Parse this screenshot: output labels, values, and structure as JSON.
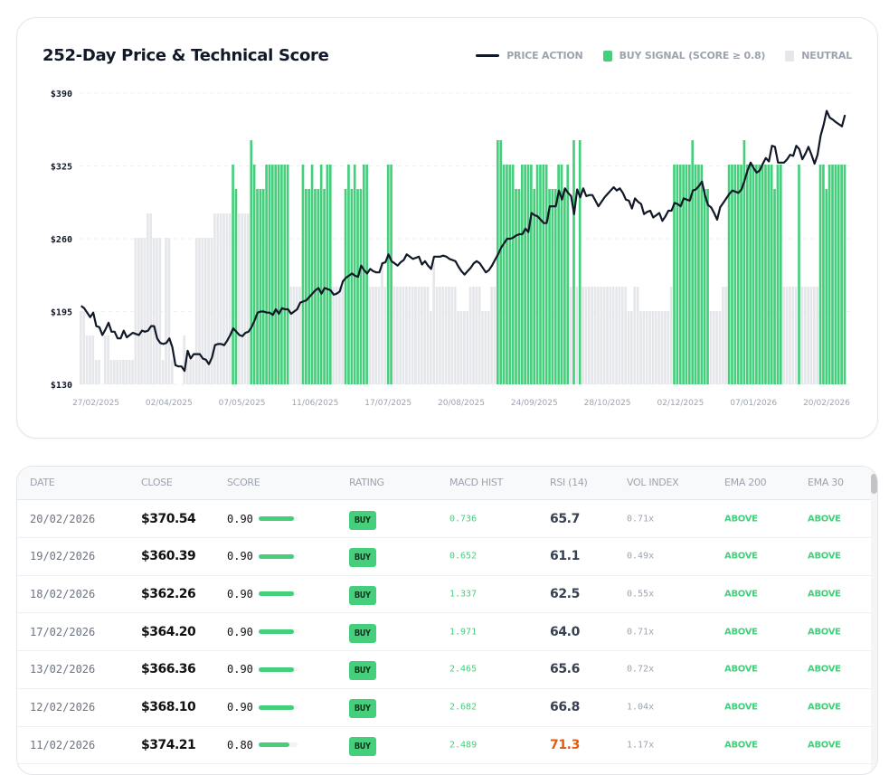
{
  "chart_data": {
    "type": "bar+line",
    "title": "252-Day Price & Technical Score",
    "legend": [
      {
        "label": "PRICE ACTION",
        "color": "#111827",
        "kind": "line"
      },
      {
        "label": "BUY SIGNAL (SCORE ≥ 0.8)",
        "color": "#45cf7c",
        "kind": "box"
      },
      {
        "label": "NEUTRAL",
        "color": "#e5e7eb",
        "kind": "box"
      }
    ],
    "legend_position": "top-right",
    "grid": true,
    "buy_threshold": 0.8,
    "ylim": [
      130,
      390
    ],
    "y_ticks": [
      "$390",
      "$325",
      "$260",
      "$195",
      "$130"
    ],
    "y_tick_values": [
      390,
      325,
      260,
      195,
      130
    ],
    "x_ticks": [
      "27/02/2025",
      "02/04/2025",
      "07/05/2025",
      "11/06/2025",
      "17/07/2025",
      "20/08/2025",
      "24/09/2025",
      "28/10/2025",
      "02/12/2025",
      "07/01/2026",
      "20/02/2026"
    ],
    "score_range": [
      0,
      1
    ],
    "series": [
      {
        "name": "PRICE ACTION",
        "kind": "line",
        "values": [
          200,
          198,
          194,
          190,
          194,
          182,
          181,
          174,
          179,
          185,
          177,
          177,
          171,
          171,
          178,
          172,
          174,
          176,
          175,
          174,
          178,
          177,
          178,
          182,
          182,
          171,
          167,
          166,
          167,
          171,
          163,
          147,
          146,
          146,
          142,
          160,
          153,
          157,
          157,
          157,
          153,
          152,
          148,
          154,
          165,
          166,
          166,
          165,
          169,
          174,
          180,
          177,
          174,
          173,
          176,
          177,
          181,
          187,
          194,
          195,
          195,
          194,
          194,
          192,
          197,
          193,
          198,
          197,
          197,
          193,
          195,
          197,
          203,
          204,
          205,
          208,
          211,
          214,
          216,
          211,
          216,
          215,
          214,
          210,
          211,
          213,
          222,
          225,
          227,
          229,
          227,
          226,
          236,
          232,
          229,
          233,
          231,
          230,
          230,
          238,
          239,
          246,
          240,
          238,
          236,
          239,
          241,
          246,
          244,
          242,
          243,
          244,
          237,
          240,
          236,
          233,
          244,
          244,
          244,
          245,
          244,
          242,
          241,
          240,
          235,
          231,
          228,
          231,
          234,
          238,
          240,
          238,
          234,
          230,
          232,
          236,
          241,
          246,
          252,
          256,
          260,
          260,
          261,
          263,
          264,
          264,
          269,
          266,
          283,
          281,
          280,
          277,
          274,
          274,
          289,
          289,
          289,
          303,
          295,
          305,
          301,
          298,
          282,
          304,
          297,
          305,
          298,
          299,
          299,
          294,
          289,
          293,
          297,
          300,
          303,
          306,
          303,
          305,
          301,
          295,
          294,
          287,
          296,
          293,
          291,
          282,
          284,
          285,
          279,
          281,
          283,
          276,
          280,
          285,
          285,
          292,
          291,
          289,
          296,
          295,
          294,
          303,
          304,
          307,
          311,
          299,
          290,
          288,
          283,
          277,
          288,
          292,
          296,
          300,
          303,
          302,
          301,
          304,
          312,
          321,
          328,
          323,
          319,
          321,
          327,
          332,
          329,
          343,
          342,
          328,
          328,
          328,
          331,
          335,
          334,
          343,
          340,
          331,
          336,
          342,
          335,
          327,
          335,
          352,
          362,
          374.21,
          368.1,
          366.36,
          364.2,
          362.26,
          360.39,
          370.54
        ]
      },
      {
        "name": "SCORE",
        "kind": "bar",
        "values": [
          0.3,
          0.3,
          0.2,
          0.2,
          0.2,
          0.1,
          0.1,
          0,
          0.2,
          0.2,
          0.1,
          0.1,
          0.1,
          0.1,
          0.1,
          0.1,
          0.1,
          0.1,
          0.6,
          0.6,
          0.6,
          0.6,
          0.7,
          0.7,
          0.6,
          0.6,
          0.6,
          0.1,
          0.6,
          0.6,
          0.1,
          0,
          0,
          0,
          0.2,
          0.1,
          0.1,
          0.1,
          0.6,
          0.6,
          0.6,
          0.6,
          0.6,
          0.6,
          0.7,
          0.7,
          0.7,
          0.7,
          0.7,
          0.7,
          0.9,
          0.8,
          0.7,
          0.7,
          0.7,
          0.7,
          1.0,
          0.9,
          0.8,
          0.8,
          0.8,
          0.9,
          0.9,
          0.9,
          0.9,
          0.9,
          0.9,
          0.9,
          0.9,
          0.4,
          0.4,
          0.4,
          0.4,
          0.9,
          0.8,
          0.8,
          0.9,
          0.8,
          0.8,
          0.9,
          0.8,
          0.9,
          0.9,
          0.4,
          0.4,
          0.4,
          0.4,
          0.8,
          0.9,
          0.8,
          0.9,
          0.8,
          0.8,
          0.9,
          0.9,
          0.4,
          0.4,
          0.4,
          0.4,
          0.5,
          0.4,
          0.9,
          0.9,
          0.4,
          0.4,
          0.4,
          0.4,
          0.4,
          0.4,
          0.4,
          0.4,
          0.4,
          0.4,
          0.4,
          0.4,
          0.3,
          0.5,
          0.4,
          0.4,
          0.4,
          0.4,
          0.4,
          0.4,
          0.4,
          0.3,
          0.3,
          0.3,
          0.3,
          0.4,
          0.4,
          0.4,
          0.4,
          0.3,
          0.3,
          0.3,
          0.4,
          0.4,
          1.0,
          1.0,
          0.9,
          0.9,
          0.9,
          0.9,
          0.8,
          0.8,
          0.9,
          0.9,
          0.9,
          0.9,
          0.8,
          0.9,
          0.9,
          0.9,
          0.9,
          0.8,
          0.8,
          0.8,
          0.9,
          0.9,
          0.8,
          0.9,
          0.4,
          1.0,
          0.4,
          1.0,
          0.4,
          0.4,
          0.4,
          0.4,
          0.4,
          0.4,
          0.4,
          0.4,
          0.4,
          0.4,
          0.4,
          0.4,
          0.4,
          0.4,
          0.4,
          0.3,
          0.3,
          0.4,
          0.4,
          0.3,
          0.3,
          0.3,
          0.3,
          0.3,
          0.3,
          0.3,
          0.3,
          0.3,
          0.3,
          0.4,
          0.9,
          0.9,
          0.9,
          0.9,
          0.9,
          0.9,
          1.0,
          0.9,
          0.9,
          0.9,
          0.8,
          0.8,
          0.3,
          0.3,
          0.3,
          0.3,
          0.4,
          0.4,
          0.9,
          0.9,
          0.9,
          0.9,
          0.9,
          1.0,
          0.9,
          0.9,
          0.9,
          0.9,
          0.9,
          0.9,
          0.9,
          0.9,
          0.9,
          0.8,
          0.9,
          0.9,
          0.4,
          0.4,
          0.4,
          0.4,
          0.4,
          0.9,
          0.4,
          0.4,
          0.4,
          0.4,
          0.4,
          0.4,
          0.9,
          0.9,
          0.8,
          0.9,
          0.9,
          0.9,
          0.9,
          0.9,
          0.9
        ]
      }
    ]
  },
  "table": {
    "headers": [
      "DATE",
      "CLOSE",
      "SCORE",
      "RATING",
      "MACD HIST",
      "RSI (14)",
      "VOL INDEX",
      "EMA 200",
      "EMA 30"
    ],
    "rows": [
      {
        "date": "20/02/2026",
        "close": "$370.54",
        "score": "0.90",
        "score_value": 0.9,
        "rating": "BUY",
        "macd": "0.736",
        "rsi": "65.7",
        "rsi_color": "#374151",
        "vol": "0.71x",
        "ema200": "ABOVE",
        "ema30": "ABOVE"
      },
      {
        "date": "19/02/2026",
        "close": "$360.39",
        "score": "0.90",
        "score_value": 0.9,
        "rating": "BUY",
        "macd": "0.652",
        "rsi": "61.1",
        "rsi_color": "#374151",
        "vol": "0.49x",
        "ema200": "ABOVE",
        "ema30": "ABOVE"
      },
      {
        "date": "18/02/2026",
        "close": "$362.26",
        "score": "0.90",
        "score_value": 0.9,
        "rating": "BUY",
        "macd": "1.337",
        "rsi": "62.5",
        "rsi_color": "#374151",
        "vol": "0.55x",
        "ema200": "ABOVE",
        "ema30": "ABOVE"
      },
      {
        "date": "17/02/2026",
        "close": "$364.20",
        "score": "0.90",
        "score_value": 0.9,
        "rating": "BUY",
        "macd": "1.971",
        "rsi": "64.0",
        "rsi_color": "#374151",
        "vol": "0.71x",
        "ema200": "ABOVE",
        "ema30": "ABOVE"
      },
      {
        "date": "13/02/2026",
        "close": "$366.36",
        "score": "0.90",
        "score_value": 0.9,
        "rating": "BUY",
        "macd": "2.465",
        "rsi": "65.6",
        "rsi_color": "#374151",
        "vol": "0.72x",
        "ema200": "ABOVE",
        "ema30": "ABOVE"
      },
      {
        "date": "12/02/2026",
        "close": "$368.10",
        "score": "0.90",
        "score_value": 0.9,
        "rating": "BUY",
        "macd": "2.682",
        "rsi": "66.8",
        "rsi_color": "#374151",
        "vol": "1.04x",
        "ema200": "ABOVE",
        "ema30": "ABOVE"
      },
      {
        "date": "11/02/2026",
        "close": "$374.21",
        "score": "0.80",
        "score_value": 0.8,
        "rating": "BUY",
        "macd": "2.489",
        "rsi": "71.3",
        "rsi_color": "#ea580c",
        "vol": "1.17x",
        "ema200": "ABOVE",
        "ema30": "ABOVE"
      }
    ]
  }
}
